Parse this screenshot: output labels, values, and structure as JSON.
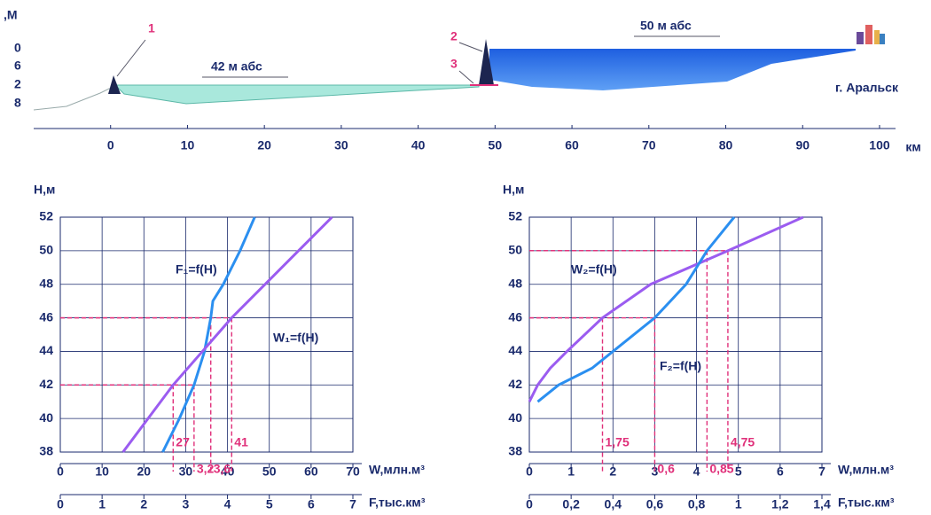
{
  "chart_data": [
    {
      "type": "profile",
      "y_label": ",М",
      "ylabels": [
        "0",
        "6",
        "2",
        "8"
      ],
      "x_label": "км",
      "xlim": [
        -10,
        106
      ],
      "xticks": [
        0,
        10,
        20,
        30,
        40,
        50,
        60,
        70,
        80,
        90,
        100
      ],
      "annotations": [
        "1",
        "2",
        "3",
        "42  м абс",
        "50  м абс",
        "г. Аральск"
      ]
    },
    {
      "type": "line",
      "y_label": "H,м",
      "ylim": [
        38,
        52
      ],
      "yticks": [
        38,
        40,
        42,
        44,
        46,
        48,
        50,
        52
      ],
      "grid": true,
      "x_label": "W,млн.м³",
      "xlim": [
        0,
        70
      ],
      "xticks": [
        0,
        10,
        20,
        30,
        40,
        50,
        60,
        70
      ],
      "x2_label": "F,тыс.км³",
      "x2lim": [
        0,
        7
      ],
      "x2ticks": [
        0,
        1,
        2,
        3,
        4,
        5,
        6,
        7
      ],
      "series": [
        {
          "name": "F₁=f(H)",
          "color": "#2b8ff0",
          "axis": "x2",
          "x": [
            2.45,
            2.85,
            3.2,
            3.45,
            3.6,
            3.65,
            3.9,
            4.3,
            4.65
          ],
          "values": [
            38,
            40,
            42,
            44,
            46,
            47,
            48,
            50,
            52
          ]
        },
        {
          "name": "W₁=f(H)",
          "color": "#9b5cf0",
          "axis": "x",
          "x": [
            15,
            21,
            27,
            34,
            41,
            49,
            57,
            65
          ],
          "values": [
            38,
            40,
            42,
            44,
            46,
            48,
            50,
            52
          ]
        }
      ],
      "guides": [
        {
          "y": 42,
          "x": 27,
          "axis": "x",
          "label": "27"
        },
        {
          "y": 46,
          "x": 41,
          "axis": "x",
          "label": "41"
        },
        {
          "y": 42,
          "x": 3.2,
          "axis": "x2",
          "label": "3,2"
        },
        {
          "y": 46,
          "x": 3.6,
          "axis": "x2",
          "label": "3,6"
        }
      ]
    },
    {
      "type": "line",
      "y_label": "H,м",
      "ylim": [
        38,
        52
      ],
      "yticks": [
        38,
        40,
        42,
        44,
        46,
        48,
        50,
        52
      ],
      "grid": true,
      "x_label": "W,млн.м³",
      "xlim": [
        0,
        7
      ],
      "xticks": [
        0,
        1,
        2,
        3,
        4,
        5,
        6,
        7
      ],
      "x2_label": "F,тыс.км³",
      "x2lim": [
        0,
        1.4
      ],
      "x2ticks": [
        0,
        {
          "value": 0.2,
          "label": "0,2"
        },
        {
          "value": 0.4,
          "label": "0,4"
        },
        {
          "value": 0.6,
          "label": "0,6"
        },
        {
          "value": 0.8,
          "label": "0,8"
        },
        1,
        {
          "value": 1.2,
          "label": "1,2"
        },
        {
          "value": 1.4,
          "label": "1,4"
        }
      ],
      "series": [
        {
          "name": "W₂=f(H)",
          "color": "#9b5cf0",
          "axis": "x",
          "x": [
            0,
            0.2,
            0.5,
            0.9,
            1.75,
            2.9,
            4.75,
            6.55
          ],
          "values": [
            41,
            42,
            43,
            44,
            46,
            48,
            50,
            52
          ]
        },
        {
          "name": "F₂=f(H)",
          "color": "#2b8ff0",
          "axis": "x2",
          "x": [
            0.04,
            0.14,
            0.3,
            0.4,
            0.6,
            0.75,
            0.85,
            0.98
          ],
          "values": [
            41,
            42,
            43,
            44,
            46,
            48,
            50,
            52
          ]
        }
      ],
      "guides": [
        {
          "y": 46,
          "x": 1.75,
          "axis": "x",
          "label": "1,75"
        },
        {
          "y": 50,
          "x": 4.75,
          "axis": "x",
          "label": "4,75"
        },
        {
          "y": 46,
          "x": 0.6,
          "axis": "x2",
          "label": "0,6"
        },
        {
          "y": 50,
          "x": 0.85,
          "axis": "x2",
          "label": "0,85"
        }
      ]
    }
  ]
}
